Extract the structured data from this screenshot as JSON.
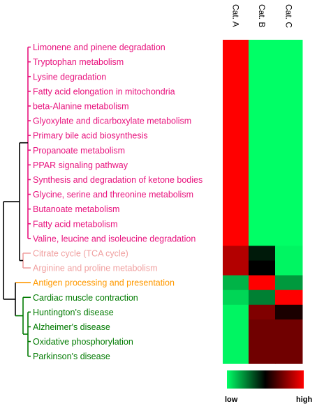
{
  "chart_data": {
    "type": "heatmap",
    "title": "",
    "columns": [
      "Cat. A",
      "Cat. B",
      "Cat. C"
    ],
    "rows": [
      {
        "label": "Limonene and pinene degradation",
        "group": "pink",
        "values": [
          1.0,
          0.0,
          0.0
        ]
      },
      {
        "label": "Tryptophan metabolism",
        "group": "pink",
        "values": [
          1.0,
          0.0,
          0.0
        ]
      },
      {
        "label": "Lysine degradation",
        "group": "pink",
        "values": [
          1.0,
          0.0,
          0.0
        ]
      },
      {
        "label": "Fatty acid elongation in mitochondria",
        "group": "pink",
        "values": [
          1.0,
          0.0,
          0.0
        ]
      },
      {
        "label": "beta-Alanine metabolism",
        "group": "pink",
        "values": [
          1.0,
          0.0,
          0.0
        ]
      },
      {
        "label": "Glyoxylate and dicarboxylate metabolism",
        "group": "pink",
        "values": [
          1.0,
          0.0,
          0.0
        ]
      },
      {
        "label": "Primary bile acid biosynthesis",
        "group": "pink",
        "values": [
          1.0,
          0.0,
          0.0
        ]
      },
      {
        "label": "Propanoate metabolism",
        "group": "pink",
        "values": [
          1.0,
          0.0,
          0.0
        ]
      },
      {
        "label": "PPAR signaling pathway",
        "group": "pink",
        "values": [
          1.0,
          0.0,
          0.0
        ]
      },
      {
        "label": "Synthesis and degradation of ketone bodies",
        "group": "pink",
        "values": [
          1.0,
          0.0,
          0.0
        ]
      },
      {
        "label": "Glycine, serine and threonine metabolism",
        "group": "pink",
        "values": [
          1.0,
          0.0,
          0.0
        ]
      },
      {
        "label": "Butanoate metabolism",
        "group": "pink",
        "values": [
          1.0,
          0.0,
          0.0
        ]
      },
      {
        "label": "Fatty acid metabolism",
        "group": "pink",
        "values": [
          1.0,
          0.0,
          0.0
        ]
      },
      {
        "label": "Valine, leucine and isoleucine degradation",
        "group": "pink",
        "values": [
          1.0,
          0.0,
          0.0
        ]
      },
      {
        "label": "Citrate cycle (TCA cycle)",
        "group": "lightpink",
        "values": [
          0.85,
          0.45,
          0.02
        ]
      },
      {
        "label": "Arginine and proline metabolism",
        "group": "lightpink",
        "values": [
          0.85,
          0.5,
          0.02
        ]
      },
      {
        "label": "Antigen processing and presentation",
        "group": "orange",
        "values": [
          0.15,
          1.0,
          0.2
        ]
      },
      {
        "label": "Cardiac muscle contraction",
        "group": "green",
        "values": [
          0.08,
          0.25,
          1.0
        ]
      },
      {
        "label": "Huntington's disease",
        "group": "green",
        "values": [
          0.02,
          0.75,
          0.55
        ]
      },
      {
        "label": "Alzheimer's disease",
        "group": "green",
        "values": [
          0.02,
          0.72,
          0.72
        ]
      },
      {
        "label": "Oxidative phosphorylation",
        "group": "green",
        "values": [
          0.02,
          0.72,
          0.72
        ]
      },
      {
        "label": "Parkinson's disease",
        "group": "green",
        "values": [
          0.02,
          0.72,
          0.72
        ]
      }
    ],
    "value_range": [
      0,
      1
    ],
    "colorscale": {
      "low": "#00ff66",
      "mid": "#000000",
      "high": "#ff0000"
    },
    "group_colors": {
      "pink": "#e8127d",
      "lightpink": "#f0a0a0",
      "orange": "#ff9900",
      "green": "#007a00"
    },
    "legend": {
      "low_label": "low",
      "high_label": "high"
    }
  }
}
